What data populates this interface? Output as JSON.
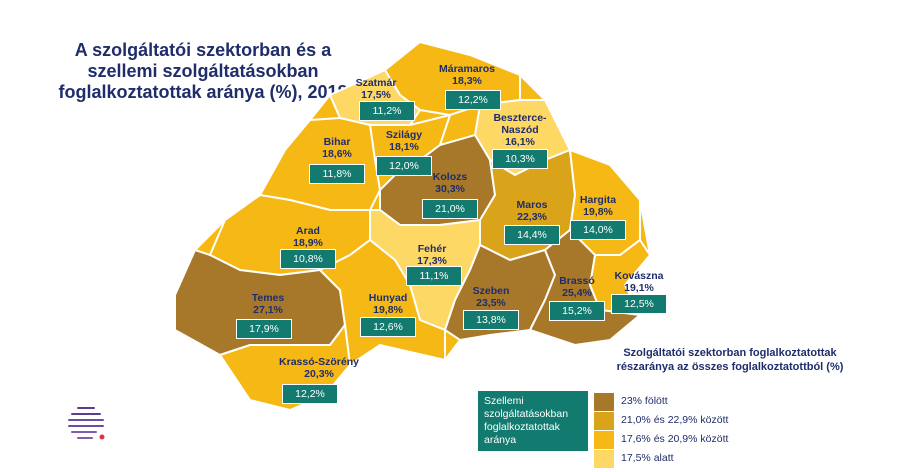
{
  "title": "A szolgáltatói szektorban és a szellemi szolgáltatásokban foglalkoztatottak aránya (%), 2018",
  "colors": {
    "above_23": "#a8782a",
    "range_21_22_9": "#d9a31a",
    "range_17_6_20_9": "#f5b814",
    "below_17_5": "#fdd865",
    "intel_box": "#127a6e",
    "text": "#1f2d6b"
  },
  "counties": [
    {
      "name": "Máramaros",
      "service": "18,3%",
      "intel": "12,2%"
    },
    {
      "name": "Szatmár",
      "service": "17,5%",
      "intel": "11,2%"
    },
    {
      "name": "Beszterce-Naszód",
      "service": "16,1%",
      "intel": "10,3%"
    },
    {
      "name": "Szilágy",
      "service": "18,1%",
      "intel": "12,0%"
    },
    {
      "name": "Bihar",
      "service": "18,6%",
      "intel": "11,8%"
    },
    {
      "name": "Kolozs",
      "service": "30,3%",
      "intel": "21,0%"
    },
    {
      "name": "Maros",
      "service": "22,3%",
      "intel": "14,4%"
    },
    {
      "name": "Hargita",
      "service": "19,8%",
      "intel": "14,0%"
    },
    {
      "name": "Arad",
      "service": "18,9%",
      "intel": "10,8%"
    },
    {
      "name": "Fehér",
      "service": "17,3%",
      "intel": "11,1%"
    },
    {
      "name": "Kovászna",
      "service": "19,1%",
      "intel": "12,5%"
    },
    {
      "name": "Temes",
      "service": "27,1%",
      "intel": "17,9%"
    },
    {
      "name": "Hunyad",
      "service": "19,8%",
      "intel": "12,6%"
    },
    {
      "name": "Szeben",
      "service": "23,5%",
      "intel": "13,8%"
    },
    {
      "name": "Brassó",
      "service": "25,4%",
      "intel": "15,2%"
    },
    {
      "name": "Krassó-Szörény",
      "service": "20,3%",
      "intel": "12,2%"
    }
  ],
  "legend": {
    "title": "Szolgáltatói szektorban foglalkoztatottak részaránya az összes foglalkoztatottból (%)",
    "intel_label": "Szellemi szolgáltatásokban foglalkoztatottak aránya",
    "items": [
      {
        "label": "23% fölött"
      },
      {
        "label": "21,0% és 22,9% között"
      },
      {
        "label": "17,6% és 20,9% között"
      },
      {
        "label": "17,5% alatt"
      }
    ]
  }
}
